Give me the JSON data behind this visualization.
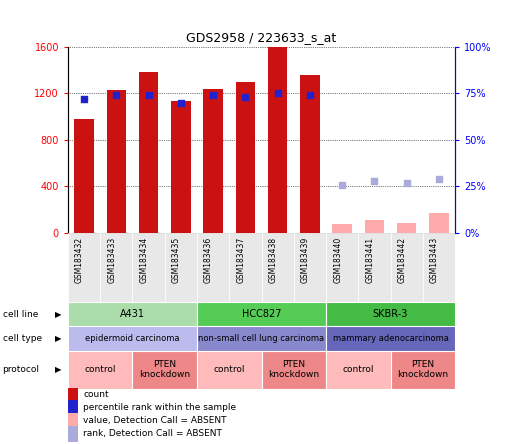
{
  "title": "GDS2958 / 223633_s_at",
  "samples": [
    "GSM183432",
    "GSM183433",
    "GSM183434",
    "GSM183435",
    "GSM183436",
    "GSM183437",
    "GSM183438",
    "GSM183439",
    "GSM183440",
    "GSM183441",
    "GSM183442",
    "GSM183443"
  ],
  "count_values": [
    975,
    1230,
    1380,
    1130,
    1240,
    1300,
    1610,
    1360,
    75,
    110,
    90,
    170
  ],
  "count_absent": [
    false,
    false,
    false,
    false,
    false,
    false,
    false,
    false,
    true,
    true,
    true,
    true
  ],
  "rank_values": [
    72,
    74,
    74,
    70,
    74,
    73,
    75,
    74,
    26,
    28,
    27,
    29
  ],
  "rank_absent": [
    false,
    false,
    false,
    false,
    false,
    false,
    false,
    false,
    true,
    true,
    true,
    true
  ],
  "ylim_left": [
    0,
    1600
  ],
  "ylim_right": [
    0,
    100
  ],
  "yticks_left": [
    0,
    400,
    800,
    1200,
    1600
  ],
  "yticks_right": [
    0,
    25,
    50,
    75,
    100
  ],
  "ytick_labels_right": [
    "0%",
    "25%",
    "50%",
    "75%",
    "100%"
  ],
  "bar_color_present": "#CC1111",
  "bar_color_absent": "#FFAAAA",
  "rank_color_present": "#2222CC",
  "rank_color_absent": "#AAAADD",
  "cell_line_data": [
    {
      "label": "A431",
      "span": [
        0,
        4
      ],
      "color": "#AADDAA"
    },
    {
      "label": "HCC827",
      "span": [
        4,
        8
      ],
      "color": "#55CC55"
    },
    {
      "label": "SKBR-3",
      "span": [
        8,
        12
      ],
      "color": "#44BB44"
    }
  ],
  "cell_type_data": [
    {
      "label": "epidermoid carcinoma",
      "span": [
        0,
        4
      ],
      "color": "#BBBBEE"
    },
    {
      "label": "non-small cell lung carcinoma",
      "span": [
        4,
        8
      ],
      "color": "#8888CC"
    },
    {
      "label": "mammary adenocarcinoma",
      "span": [
        8,
        12
      ],
      "color": "#6666BB"
    }
  ],
  "protocol_data": [
    {
      "label": "control",
      "span": [
        0,
        2
      ],
      "color": "#FFBBBB"
    },
    {
      "label": "PTEN\nknockdown",
      "span": [
        2,
        4
      ],
      "color": "#EE8888"
    },
    {
      "label": "control",
      "span": [
        4,
        6
      ],
      "color": "#FFBBBB"
    },
    {
      "label": "PTEN\nknockdown",
      "span": [
        6,
        8
      ],
      "color": "#EE8888"
    },
    {
      "label": "control",
      "span": [
        8,
        10
      ],
      "color": "#FFBBBB"
    },
    {
      "label": "PTEN\nknockdown",
      "span": [
        10,
        12
      ],
      "color": "#EE8888"
    }
  ],
  "row_labels": [
    "cell line",
    "cell type",
    "protocol"
  ],
  "legend_items": [
    {
      "color": "#CC1111",
      "label": "count"
    },
    {
      "color": "#2222CC",
      "label": "percentile rank within the sample"
    },
    {
      "color": "#FFAAAA",
      "label": "value, Detection Call = ABSENT"
    },
    {
      "color": "#AAAADD",
      "label": "rank, Detection Call = ABSENT"
    }
  ],
  "bg_color": "#E8E8E8"
}
